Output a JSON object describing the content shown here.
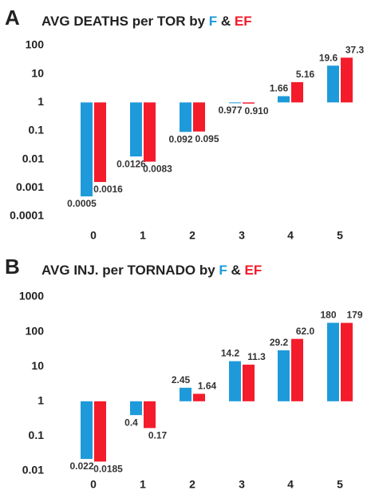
{
  "panels": [
    "A",
    "B"
  ],
  "chart_data": [
    {
      "type": "bar",
      "title": "AVG DEATHS per TOR by F & EF",
      "categories": [
        "0",
        "1",
        "2",
        "3",
        "4",
        "5"
      ],
      "log_scale": true,
      "ylim": [
        0.0001,
        100
      ],
      "yticks": [
        100,
        10,
        1,
        0.1,
        0.01,
        0.001,
        0.0001
      ],
      "series": [
        {
          "name": "F",
          "color": "#1e9ada",
          "values": [
            0.0005,
            0.0126,
            0.092,
            0.977,
            1.66,
            19.6
          ],
          "value_labels": [
            "0.0005",
            "0.0126",
            "0.092",
            "0.977",
            "1.66",
            "19.6"
          ]
        },
        {
          "name": "EF",
          "color": "#f41b2b",
          "values": [
            0.0016,
            0.0083,
            0.095,
            0.91,
            5.16,
            37.3
          ],
          "value_labels": [
            "0.0016",
            "0.0083",
            "0.095",
            "0.910",
            "5.16",
            "37.3"
          ]
        }
      ]
    },
    {
      "type": "bar",
      "title": "AVG INJ. per TORNADO by F & EF",
      "categories": [
        "0",
        "1",
        "2",
        "3",
        "4",
        "5"
      ],
      "log_scale": true,
      "ylim": [
        0.01,
        1000
      ],
      "yticks": [
        1000,
        100,
        10,
        1,
        0.1,
        0.01
      ],
      "series": [
        {
          "name": "F",
          "color": "#1e9ada",
          "values": [
            0.022,
            0.4,
            2.45,
            14.2,
            29.2,
            180
          ],
          "value_labels": [
            "0.022",
            "0.4",
            "2.45",
            "14.2",
            "29.2",
            "180"
          ]
        },
        {
          "name": "EF",
          "color": "#f41b2b",
          "values": [
            0.0185,
            0.17,
            1.64,
            11.3,
            62,
            179
          ],
          "value_labels": [
            "0.0185",
            "0.17",
            "1.64",
            "11.3",
            "62.0",
            "179"
          ]
        }
      ]
    }
  ]
}
